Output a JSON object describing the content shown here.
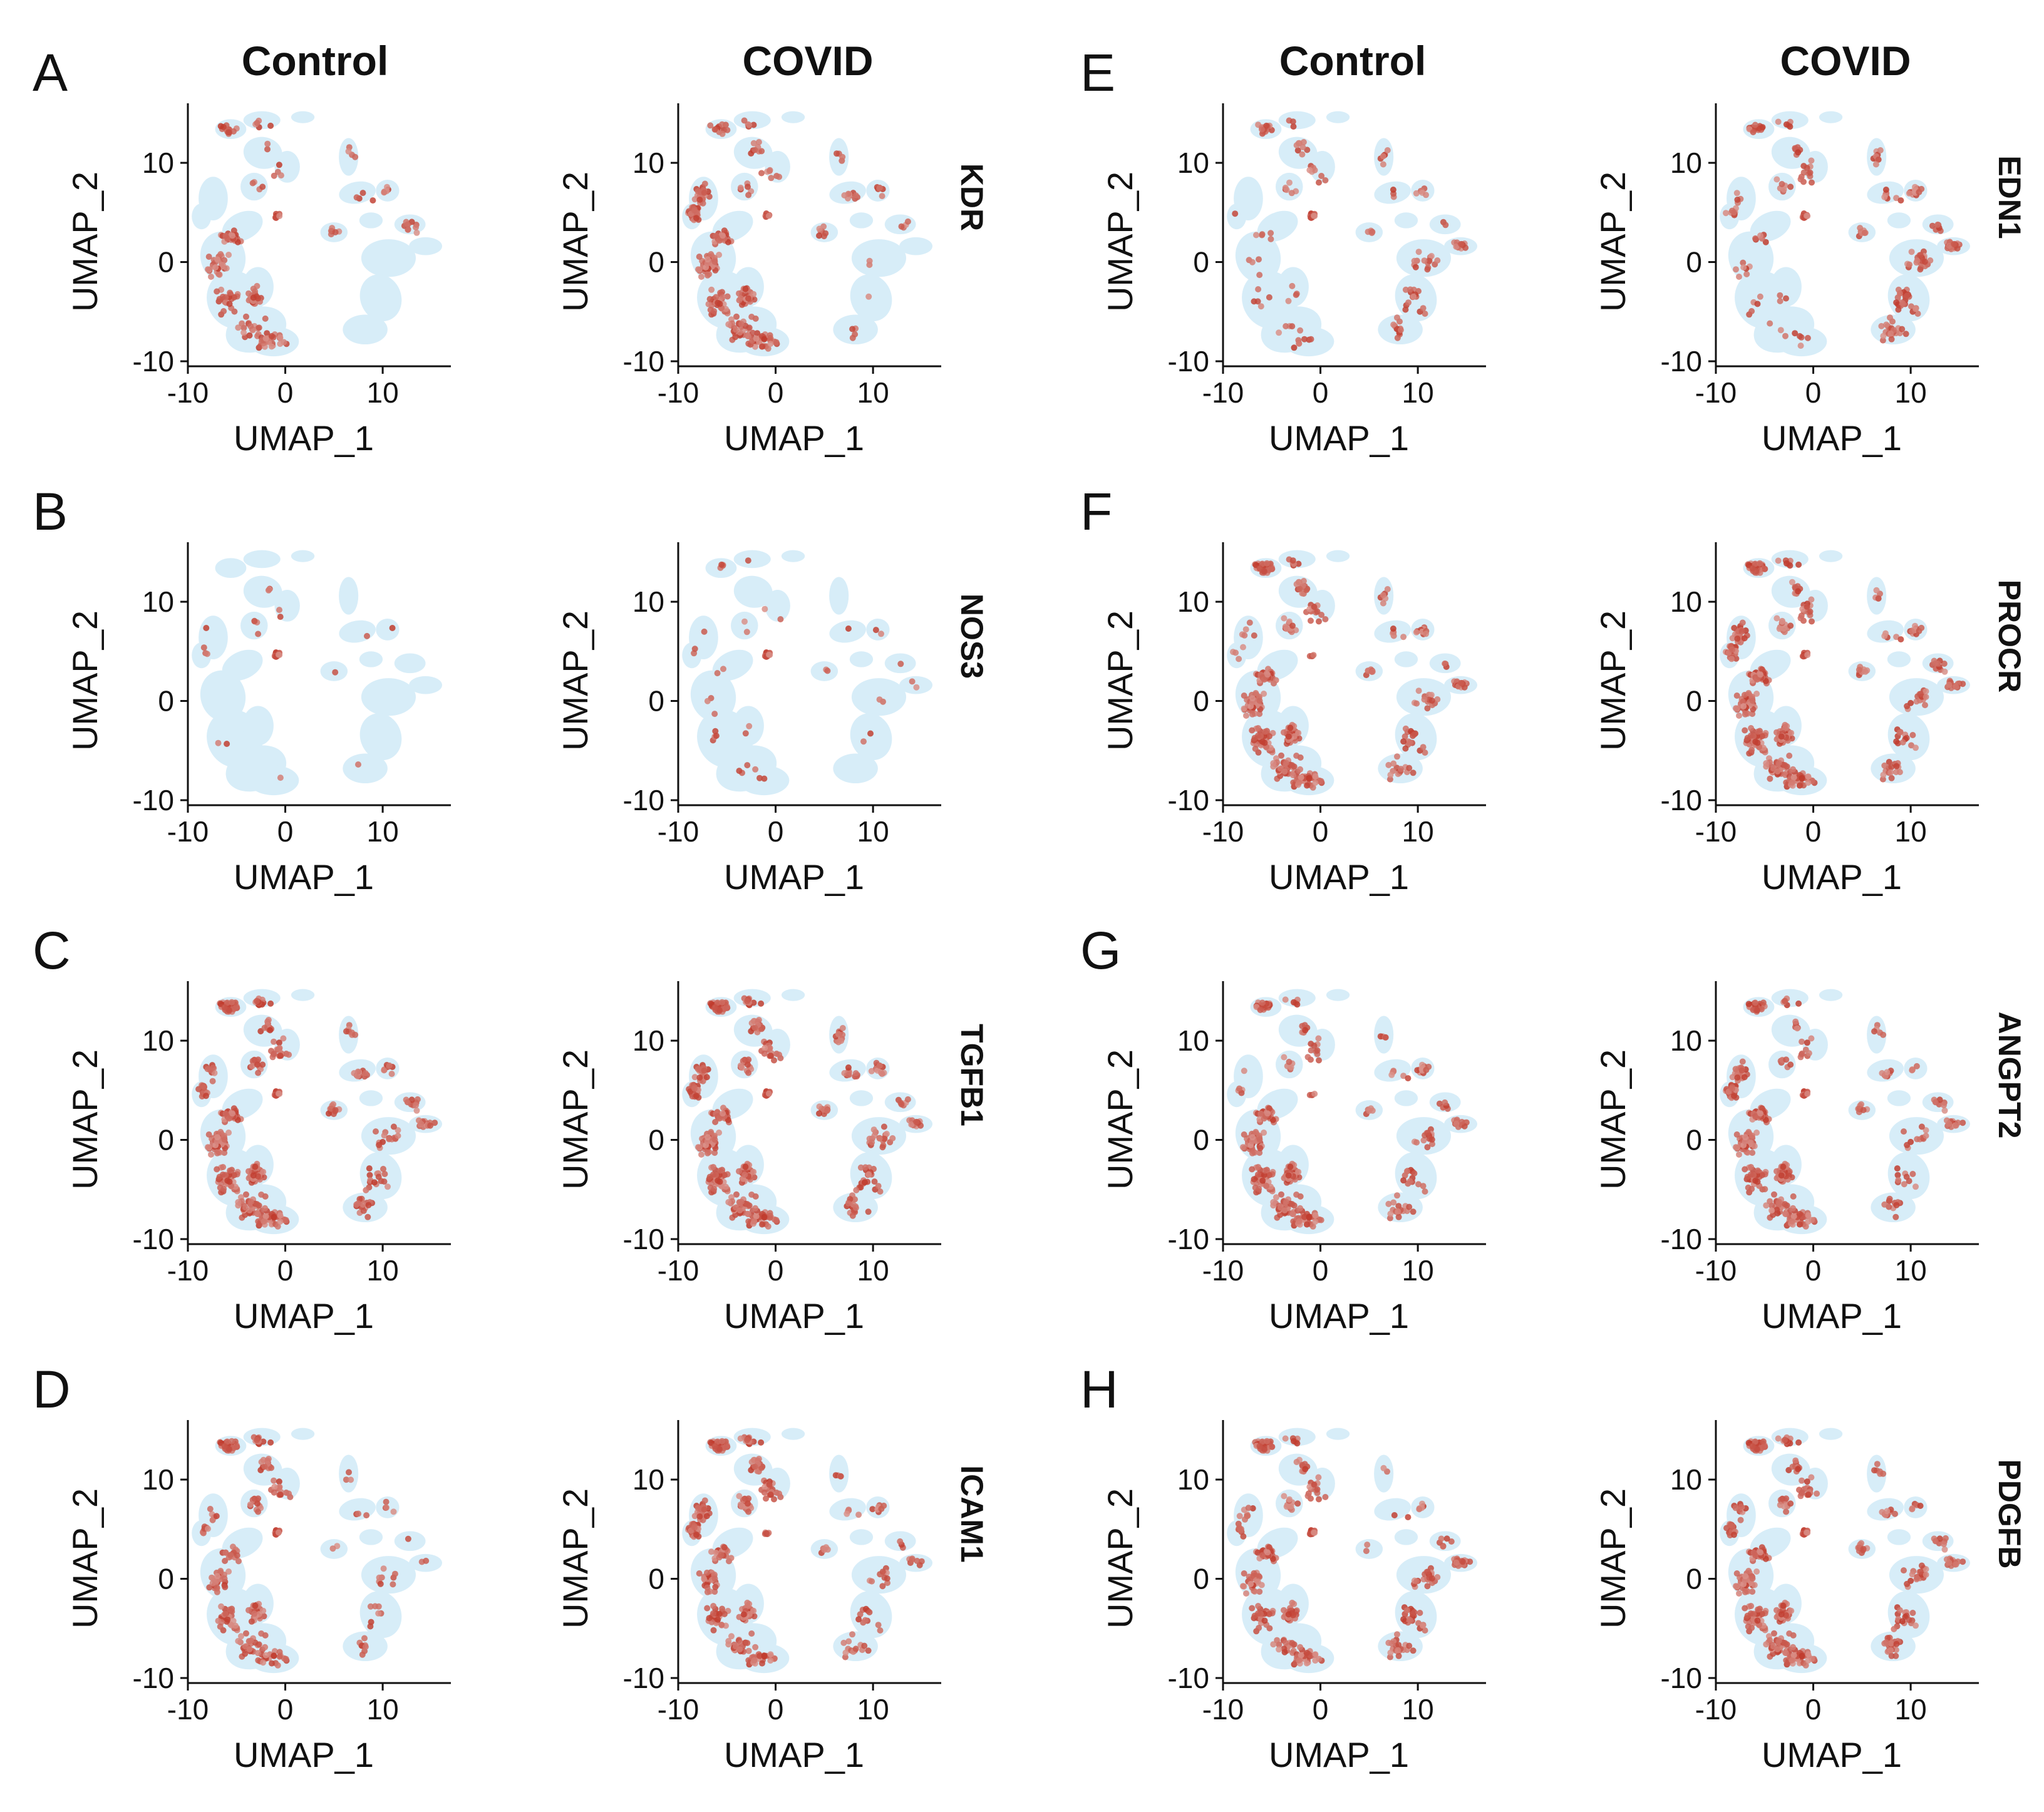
{
  "figure": {
    "column_titles": [
      "Control",
      "COVID",
      "Control",
      "COVID"
    ]
  },
  "chart_data": [
    {
      "type": "scatter",
      "panel": "A",
      "gene": "KDR",
      "xlabel": "UMAP_1",
      "ylabel": "UMAP_2",
      "xlim": [
        -10,
        17
      ],
      "ylim": [
        -10,
        16
      ],
      "xticks": [
        -10,
        0,
        10
      ],
      "yticks": [
        -10,
        0,
        10
      ],
      "background_color": "#d7edf8",
      "expression_color": "#c0392b",
      "conditions": [
        {
          "condition": "Control",
          "expression": {
            "top_left": 0.15,
            "left_cluster": 0.0,
            "center_top": 0.2,
            "right_top": 0.3,
            "small_blob": 0.3,
            "swirl": 0.55,
            "right_cluster": 0.0
          }
        },
        {
          "condition": "COVID",
          "expression": {
            "top_left": 0.3,
            "left_cluster": 0.9,
            "center_top": 0.2,
            "right_top": 0.3,
            "small_blob": 0.3,
            "swirl": 0.7,
            "right_cluster": 0.05
          }
        }
      ]
    },
    {
      "type": "scatter",
      "panel": "B",
      "gene": "NOS3",
      "xlabel": "UMAP_1",
      "ylabel": "UMAP_2",
      "xlim": [
        -10,
        17
      ],
      "ylim": [
        -10,
        16
      ],
      "xticks": [
        -10,
        0,
        10
      ],
      "yticks": [
        -10,
        0,
        10
      ],
      "background_color": "#d7edf8",
      "expression_color": "#c0392b",
      "conditions": [
        {
          "condition": "Control",
          "expression": {
            "top_left": 0.0,
            "left_cluster": 0.05,
            "center_top": 0.1,
            "right_top": 0.05,
            "small_blob": 0.9,
            "swirl": 0.02,
            "right_cluster": 0.02
          }
        },
        {
          "condition": "COVID",
          "expression": {
            "top_left": 0.05,
            "left_cluster": 0.05,
            "center_top": 0.1,
            "right_top": 0.05,
            "small_blob": 0.9,
            "swirl": 0.1,
            "right_cluster": 0.03
          }
        }
      ]
    },
    {
      "type": "scatter",
      "panel": "C",
      "gene": "TGFB1",
      "xlabel": "UMAP_1",
      "ylabel": "UMAP_2",
      "xlim": [
        -10,
        17
      ],
      "ylim": [
        -10,
        16
      ],
      "xticks": [
        -10,
        0,
        10
      ],
      "yticks": [
        -10,
        0,
        10
      ],
      "background_color": "#d7edf8",
      "expression_color": "#c0392b",
      "conditions": [
        {
          "condition": "Control",
          "expression": {
            "top_left": 0.95,
            "left_cluster": 0.3,
            "center_top": 0.6,
            "right_top": 0.5,
            "small_blob": 0.9,
            "swirl": 0.9,
            "right_cluster": 0.5
          }
        },
        {
          "condition": "COVID",
          "expression": {
            "top_left": 0.95,
            "left_cluster": 0.9,
            "center_top": 0.7,
            "right_top": 0.5,
            "small_blob": 0.8,
            "swirl": 0.85,
            "right_cluster": 0.5
          }
        }
      ]
    },
    {
      "type": "scatter",
      "panel": "D",
      "gene": "ICAM1",
      "xlabel": "UMAP_1",
      "ylabel": "UMAP_2",
      "xlim": [
        -10,
        17
      ],
      "ylim": [
        -10,
        16
      ],
      "xticks": [
        -10,
        0,
        10
      ],
      "yticks": [
        -10,
        0,
        10
      ],
      "background_color": "#d7edf8",
      "expression_color": "#c0392b",
      "conditions": [
        {
          "condition": "Control",
          "expression": {
            "top_left": 0.8,
            "left_cluster": 0.2,
            "center_top": 0.5,
            "right_top": 0.1,
            "small_blob": 0.6,
            "swirl": 0.55,
            "right_cluster": 0.15
          }
        },
        {
          "condition": "COVID",
          "expression": {
            "top_left": 0.9,
            "left_cluster": 0.95,
            "center_top": 0.8,
            "right_top": 0.2,
            "small_blob": 0.6,
            "swirl": 0.6,
            "right_cluster": 0.2
          }
        }
      ]
    },
    {
      "type": "scatter",
      "panel": "E",
      "gene": "EDN1",
      "xlabel": "UMAP_1",
      "ylabel": "UMAP_2",
      "xlim": [
        -10,
        17
      ],
      "ylim": [
        -10,
        16
      ],
      "xticks": [
        -10,
        0,
        10
      ],
      "yticks": [
        -10,
        0,
        10
      ],
      "background_color": "#d7edf8",
      "expression_color": "#c0392b",
      "conditions": [
        {
          "condition": "Control",
          "expression": {
            "top_left": 0.2,
            "left_cluster": 0.05,
            "center_top": 0.3,
            "right_top": 0.2,
            "small_blob": 0.9,
            "swirl": 0.15,
            "right_cluster": 0.3
          }
        },
        {
          "condition": "COVID",
          "expression": {
            "top_left": 0.3,
            "left_cluster": 0.2,
            "center_top": 0.3,
            "right_top": 0.4,
            "small_blob": 0.95,
            "swirl": 0.1,
            "right_cluster": 0.5
          }
        }
      ]
    },
    {
      "type": "scatter",
      "panel": "F",
      "gene": "PROCR",
      "xlabel": "UMAP_1",
      "ylabel": "UMAP_2",
      "xlim": [
        -10,
        17
      ],
      "ylim": [
        -10,
        16
      ],
      "xticks": [
        -10,
        0,
        10
      ],
      "yticks": [
        -10,
        0,
        10
      ],
      "background_color": "#d7edf8",
      "expression_color": "#c0392b",
      "conditions": [
        {
          "condition": "Control",
          "expression": {
            "top_left": 0.9,
            "left_cluster": 0.1,
            "center_top": 0.5,
            "right_top": 0.3,
            "small_blob": 0.5,
            "swirl": 0.9,
            "right_cluster": 0.3
          }
        },
        {
          "condition": "COVID",
          "expression": {
            "top_left": 0.9,
            "left_cluster": 0.9,
            "center_top": 0.6,
            "right_top": 0.4,
            "small_blob": 0.5,
            "swirl": 0.9,
            "right_cluster": 0.35
          }
        }
      ]
    },
    {
      "type": "scatter",
      "panel": "G",
      "gene": "ANGPT2",
      "xlabel": "UMAP_1",
      "ylabel": "UMAP_2",
      "xlim": [
        -10,
        17
      ],
      "ylim": [
        -10,
        16
      ],
      "xticks": [
        -10,
        0,
        10
      ],
      "yticks": [
        -10,
        0,
        10
      ],
      "background_color": "#d7edf8",
      "expression_color": "#c0392b",
      "conditions": [
        {
          "condition": "Control",
          "expression": {
            "top_left": 0.4,
            "left_cluster": 0.1,
            "center_top": 0.3,
            "right_top": 0.3,
            "small_blob": 0.4,
            "swirl": 0.9,
            "right_cluster": 0.3
          }
        },
        {
          "condition": "COVID",
          "expression": {
            "top_left": 0.5,
            "left_cluster": 0.8,
            "center_top": 0.3,
            "right_top": 0.3,
            "small_blob": 0.9,
            "swirl": 0.85,
            "right_cluster": 0.3
          }
        }
      ]
    },
    {
      "type": "scatter",
      "panel": "H",
      "gene": "PDGFB",
      "xlabel": "UMAP_1",
      "ylabel": "UMAP_2",
      "xlim": [
        -10,
        17
      ],
      "ylim": [
        -10,
        16
      ],
      "xticks": [
        -10,
        0,
        10
      ],
      "yticks": [
        -10,
        0,
        10
      ],
      "background_color": "#d7edf8",
      "expression_color": "#c0392b",
      "conditions": [
        {
          "condition": "Control",
          "expression": {
            "top_left": 0.95,
            "left_cluster": 0.2,
            "center_top": 0.6,
            "right_top": 0.2,
            "small_blob": 0.9,
            "swirl": 0.6,
            "right_cluster": 0.5
          }
        },
        {
          "condition": "COVID",
          "expression": {
            "top_left": 0.95,
            "left_cluster": 0.3,
            "center_top": 0.6,
            "right_top": 0.4,
            "small_blob": 0.9,
            "swirl": 0.85,
            "right_cluster": 0.55
          }
        }
      ]
    }
  ]
}
